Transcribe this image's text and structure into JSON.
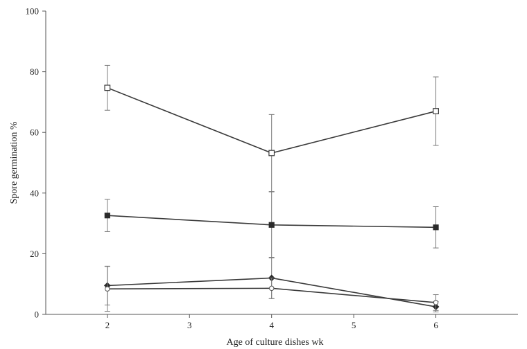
{
  "chart_data": {
    "type": "line",
    "title": "",
    "xlabel": "Age of culture dishes wk",
    "ylabel": "Spore germination %",
    "xlim": [
      1.25,
      7.0
    ],
    "ylim": [
      0,
      100
    ],
    "x_ticks": [
      2,
      3,
      4,
      5,
      6
    ],
    "y_ticks": [
      0,
      20,
      40,
      60,
      80,
      100
    ],
    "grid": false,
    "legend": "none",
    "x": [
      2,
      4,
      6
    ],
    "series": [
      {
        "marker": "open-square",
        "values": [
          74.7,
          53.2,
          67.0
        ],
        "error": [
          7.4,
          12.7,
          11.3
        ]
      },
      {
        "marker": "filled-square",
        "values": [
          32.6,
          29.5,
          28.7
        ],
        "error": [
          5.3,
          10.9,
          6.8
        ]
      },
      {
        "marker": "filled-diamond",
        "values": [
          9.5,
          12.0,
          2.5
        ],
        "error": [
          6.4,
          6.8,
          1.7
        ]
      },
      {
        "marker": "open-circle",
        "values": [
          8.4,
          8.6,
          3.9
        ],
        "error": [
          7.4,
          3.4,
          2.6
        ]
      }
    ]
  }
}
